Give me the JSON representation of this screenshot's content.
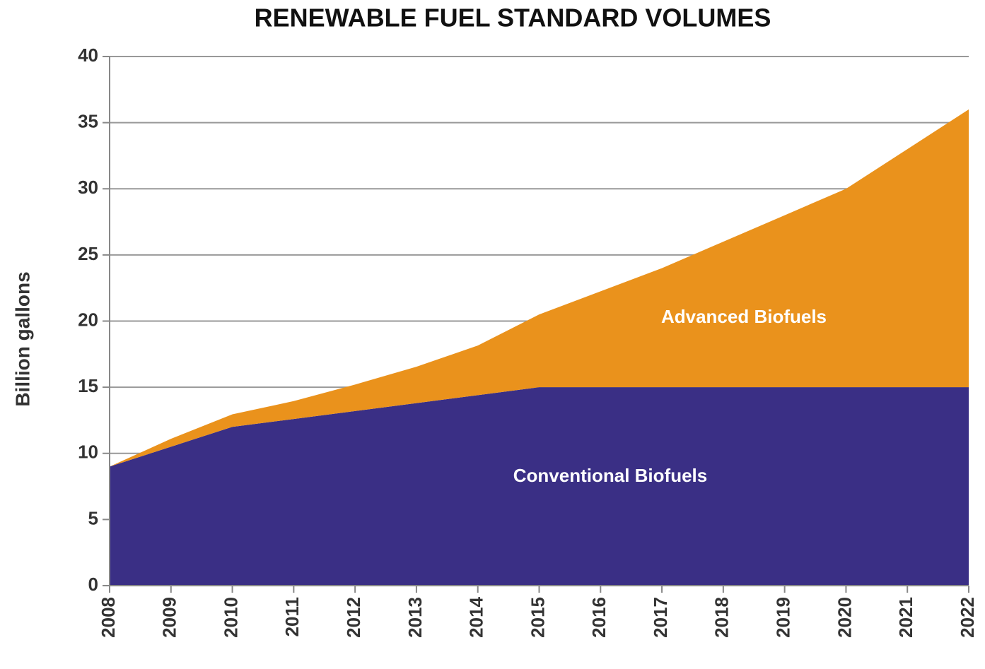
{
  "chart_data": {
    "type": "stacked_area",
    "title": "RENEWABLE FUEL STANDARD VOLUMES",
    "y_label": "Billion gallons",
    "x": [
      2008,
      2009,
      2010,
      2011,
      2012,
      2013,
      2014,
      2015,
      2016,
      2017,
      2018,
      2019,
      2020,
      2021,
      2022
    ],
    "series": [
      {
        "name": "Conventional Biofuels",
        "color": "#3a2f85",
        "values": [
          9,
          10.5,
          12,
          12.6,
          13.2,
          13.8,
          14.4,
          15,
          15,
          15,
          15,
          15,
          15,
          15,
          15
        ]
      },
      {
        "name": "Advanced Biofuels",
        "color": "#ea921c",
        "values": [
          0,
          0.6,
          0.95,
          1.35,
          2.0,
          2.75,
          3.75,
          5.5,
          7.25,
          9,
          11,
          13,
          15,
          18,
          21
        ]
      }
    ],
    "xlim": [
      2008,
      2022
    ],
    "xticks": [
      2008,
      2009,
      2010,
      2011,
      2012,
      2013,
      2014,
      2015,
      2016,
      2017,
      2018,
      2019,
      2020,
      2021,
      2022
    ],
    "ylim": [
      0,
      40
    ],
    "yticks": [
      0,
      5,
      10,
      15,
      20,
      25,
      30,
      35,
      40
    ],
    "grid": true
  }
}
